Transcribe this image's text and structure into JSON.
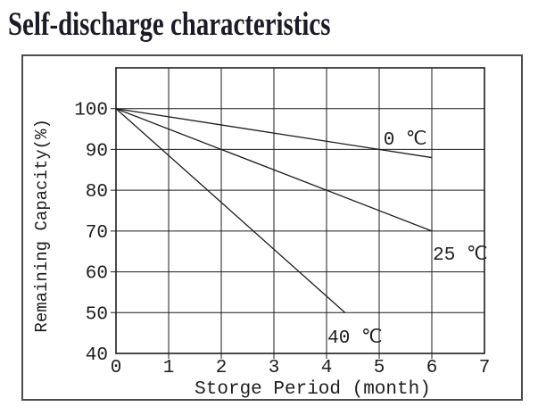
{
  "page": {
    "title": "Self-discharge characteristics"
  },
  "colors": {
    "line": "#1d1d1d",
    "grid": "#1d1d1d",
    "plot_border": "#1d1d1d",
    "figure_border": "#4d4d4d",
    "background": "#ffffff",
    "title_text": "#1b1b26"
  },
  "chart_data": {
    "type": "line",
    "title": "Self-discharge characteristics",
    "xlabel": "Storge Period (month)",
    "ylabel": "Remaining Capacity(%)",
    "xlim": [
      0,
      7
    ],
    "ylim": [
      40,
      110
    ],
    "x_ticks": [
      0,
      1,
      2,
      3,
      4,
      5,
      6,
      7
    ],
    "y_ticks": [
      40,
      50,
      60,
      70,
      80,
      90,
      100
    ],
    "grid": true,
    "legend_position": "inline-labels",
    "series": [
      {
        "name": "0 ℃",
        "points": [
          [
            0,
            100
          ],
          [
            6,
            88
          ]
        ]
      },
      {
        "name": "25 ℃",
        "points": [
          [
            0,
            100
          ],
          [
            6,
            70
          ]
        ]
      },
      {
        "name": "40 ℃",
        "points": [
          [
            0,
            100
          ],
          [
            4.35,
            50
          ]
        ]
      }
    ],
    "annotations": [
      {
        "text": "0 ℃",
        "x": 5.08,
        "y": 91.2
      },
      {
        "text": "25 ℃",
        "x": 6.02,
        "y": 63.0
      },
      {
        "text": "40 ℃",
        "x": 4.02,
        "y": 42.6
      }
    ]
  }
}
